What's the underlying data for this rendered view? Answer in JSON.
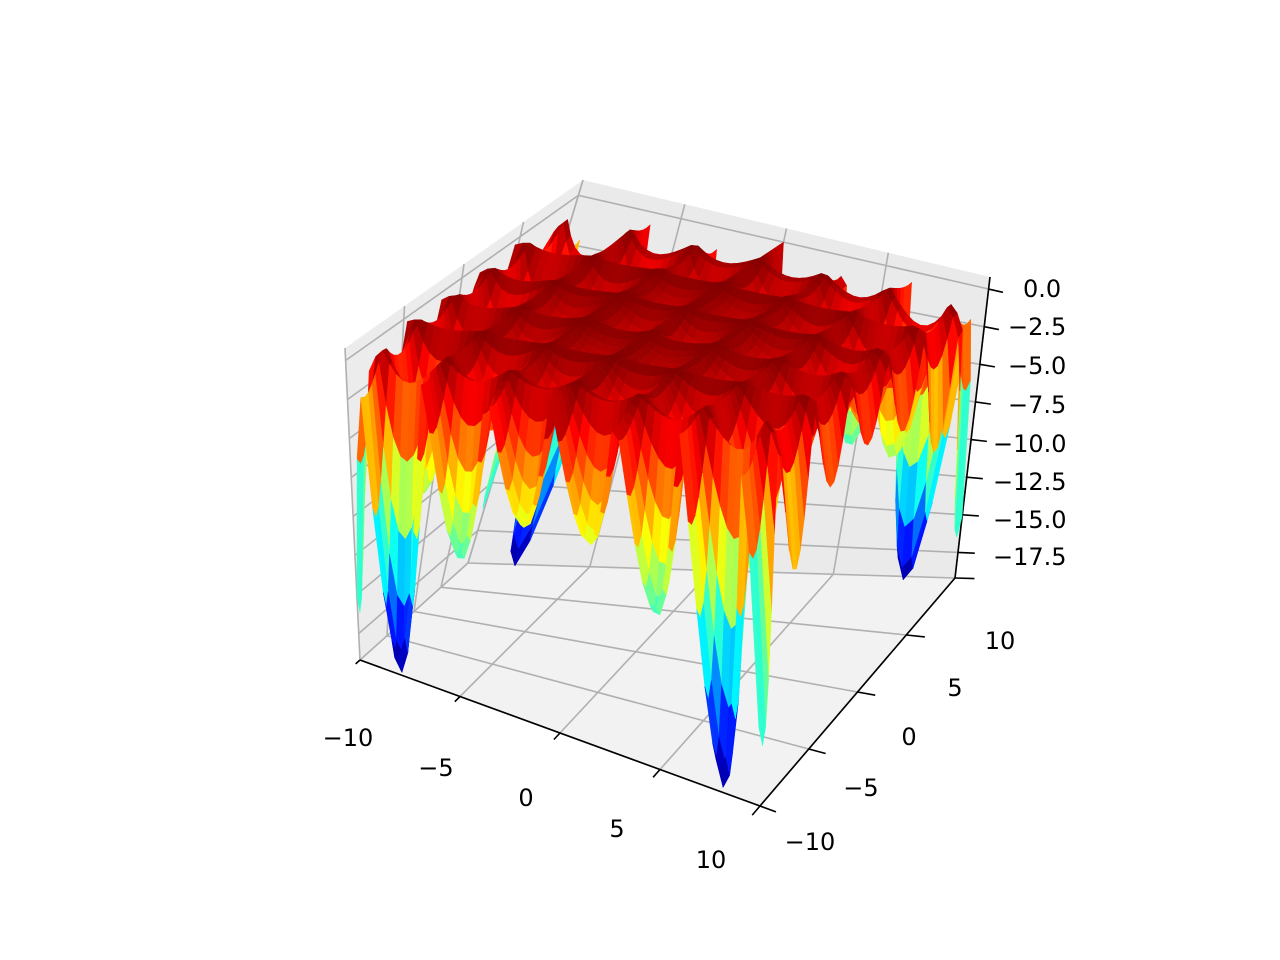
{
  "chart_data": {
    "type": "surface",
    "colormap": "jet",
    "grid": true,
    "pane_color": "#f2f2f2",
    "xlim": [
      -10,
      10
    ],
    "ylim": [
      -10,
      10
    ],
    "zlim": [
      -19.2,
      0.8
    ],
    "x_ticks": [
      -10,
      -5,
      0,
      5,
      10
    ],
    "y_ticks": [
      -10,
      -5,
      0,
      5,
      10
    ],
    "z_ticks": [
      0,
      -2.5,
      -5,
      -7.5,
      -10,
      -12.5,
      -15,
      -17.5
    ],
    "x_tick_labels": [
      "−10",
      "−5",
      "0",
      "5",
      "10"
    ],
    "y_tick_labels": [
      "−10",
      "−5",
      "0",
      "5",
      "10"
    ],
    "z_tick_labels": [
      "0.0",
      "−2.5",
      "−5.0",
      "−7.5",
      "−10.0",
      "−12.5",
      "−15.0",
      "−17.5"
    ],
    "surface": {
      "description": "Holder-table-like surface z = -|sin(x)cos(y)exp(|1 - sqrt(x^2+y^2)/pi|)|",
      "x_range": [
        -10,
        10
      ],
      "y_range": [
        -10,
        10
      ],
      "z_min": -19.2,
      "z_max": 0,
      "global_minima": [
        {
          "x": 8.06,
          "y": 9.66,
          "z": -19.2
        },
        {
          "x": -8.06,
          "y": 9.66,
          "z": -19.2
        },
        {
          "x": 8.06,
          "y": -9.66,
          "z": -19.2
        },
        {
          "x": -8.06,
          "y": -9.66,
          "z": -19.2
        }
      ]
    }
  }
}
